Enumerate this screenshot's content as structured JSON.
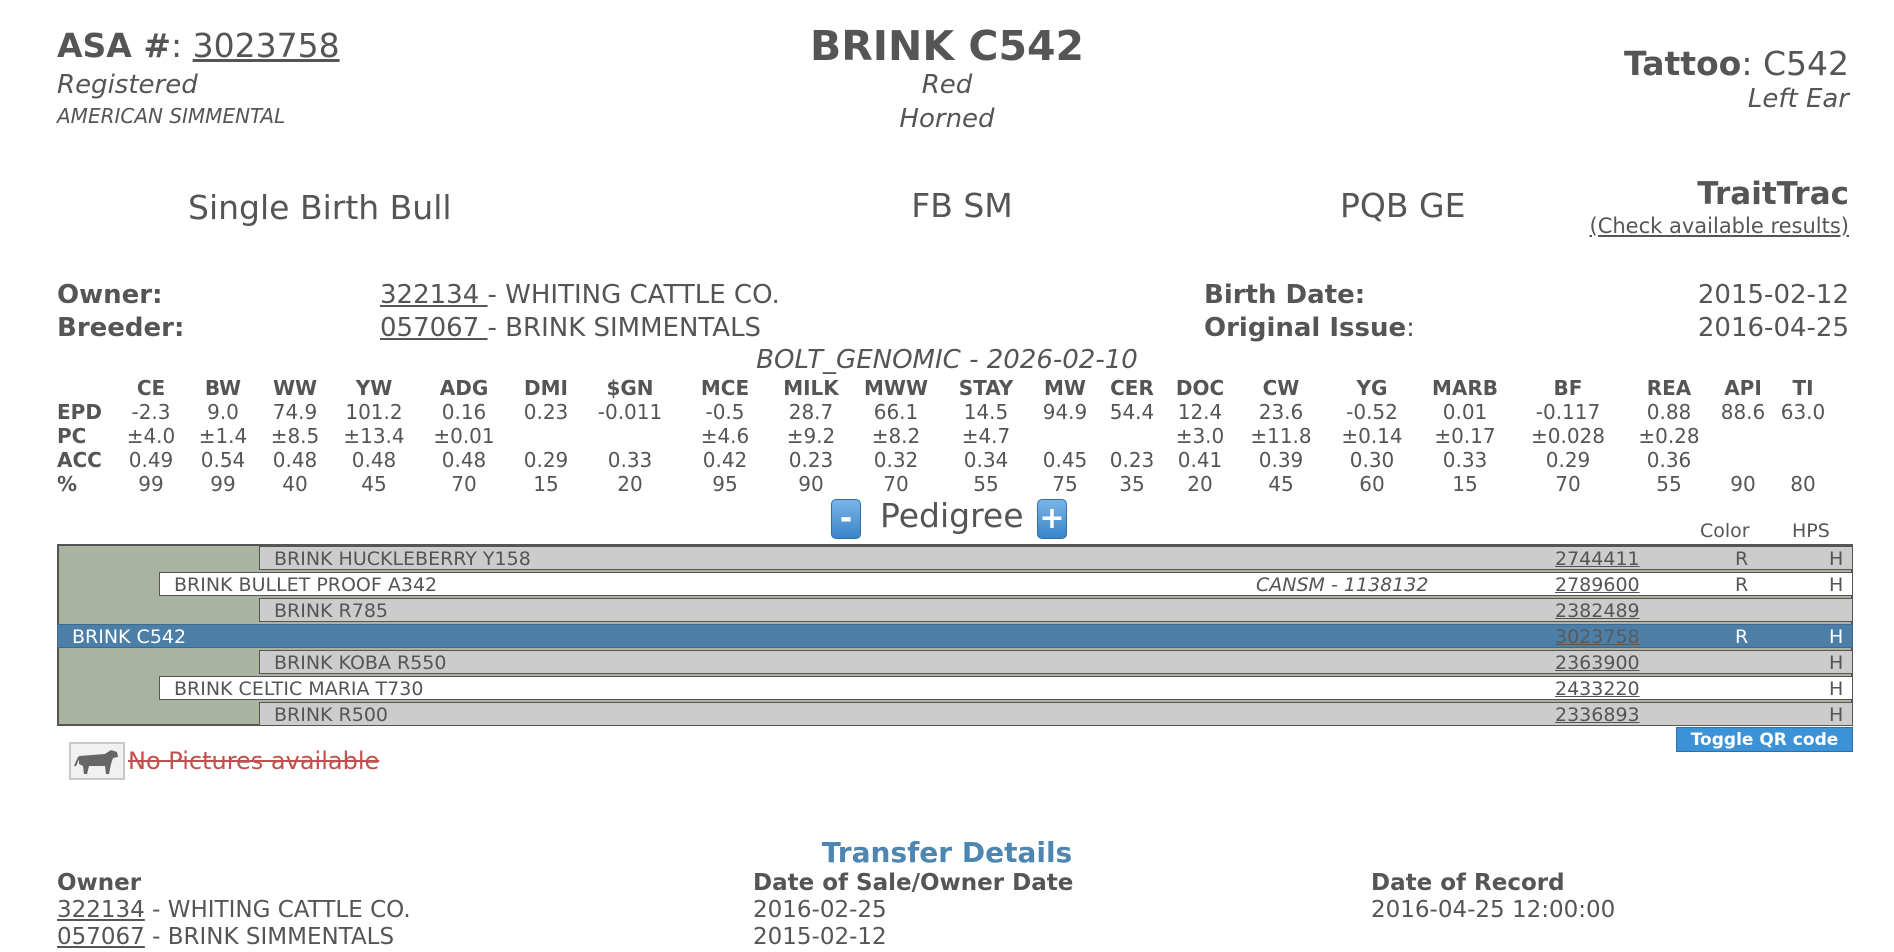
{
  "header": {
    "asa_label": "ASA #",
    "asa_number": "3023758",
    "status": "Registered",
    "breed_assoc": "AMERICAN SIMMENTAL",
    "name": "BRINK C542",
    "color": "Red",
    "horn": "Horned",
    "tattoo_label": "Tattoo",
    "tattoo_value": "C542",
    "tattoo_location": "Left Ear"
  },
  "summary": {
    "birth_type": "Single Birth Bull",
    "breed_code": "FB SM",
    "pqb": "PQB GE",
    "traittrac_title": "TraitTrac",
    "traittrac_link": "(Check available results)"
  },
  "info": {
    "owner_label": "Owner:",
    "owner_id": "322134 ",
    "owner_name": "- WHITING CATTLE CO.",
    "breeder_label": "Breeder:",
    "breeder_id": "057067 ",
    "breeder_name": "- BRINK SIMMENTALS",
    "birth_label": "Birth Date:",
    "birth_value": "2015-02-12",
    "issue_label": "Original Issue",
    "issue_value": "2016-04-25"
  },
  "epd": {
    "source": "BOLT_GENOMIC - 2026-02-10",
    "traits": [
      "CE",
      "BW",
      "WW",
      "YW",
      "ADG",
      "DMI",
      "$GN",
      "MCE",
      "MILK",
      "MWW",
      "STAY",
      "MW",
      "CER",
      "DOC",
      "CW",
      "YG",
      "MARB",
      "BF",
      "REA",
      "API",
      "TI"
    ],
    "rows": [
      {
        "label": "EPD",
        "values": [
          "-2.3",
          "9.0",
          "74.9",
          "101.2",
          "0.16",
          "0.23",
          "-0.011",
          "-0.5",
          "28.7",
          "66.1",
          "14.5",
          "94.9",
          "54.4",
          "12.4",
          "23.6",
          "-0.52",
          "0.01",
          "-0.117",
          "0.88",
          "88.6",
          "63.0"
        ]
      },
      {
        "label": "PC",
        "values": [
          "±4.0",
          "±1.4",
          "±8.5",
          "±13.4",
          "±0.01",
          "",
          "",
          "±4.6",
          "±9.2",
          "±8.2",
          "±4.7",
          "",
          "",
          "±3.0",
          "±11.8",
          "±0.14",
          "±0.17",
          "±0.028",
          "±0.28",
          "",
          ""
        ]
      },
      {
        "label": "ACC",
        "values": [
          "0.49",
          "0.54",
          "0.48",
          "0.48",
          "0.48",
          "0.29",
          "0.33",
          "0.42",
          "0.23",
          "0.32",
          "0.34",
          "0.45",
          "0.23",
          "0.41",
          "0.39",
          "0.30",
          "0.33",
          "0.29",
          "0.36",
          "",
          ""
        ]
      },
      {
        "label": "%",
        "values": [
          "99",
          "99",
          "40",
          "45",
          "70",
          "15",
          "20",
          "95",
          "90",
          "70",
          "55",
          "75",
          "35",
          "20",
          "45",
          "60",
          "15",
          "70",
          "55",
          "90",
          "80"
        ]
      }
    ]
  },
  "pedigree": {
    "title": "Pedigree",
    "minus": "-",
    "plus": "+",
    "col_color": "Color",
    "col_hps": "HPS",
    "rows": [
      {
        "name": "BRINK HUCKLEBERRY Y158",
        "reg": "2744411",
        "color": "R",
        "hps": "H",
        "note": ""
      },
      {
        "name": "BRINK BULLET PROOF A342",
        "reg": "2789600",
        "color": "R",
        "hps": "H",
        "note": "CANSM - 1138132"
      },
      {
        "name": "BRINK R785",
        "reg": "2382489",
        "color": "",
        "hps": "",
        "note": ""
      },
      {
        "name": "BRINK C542",
        "reg": "3023758",
        "color": "R",
        "hps": "H",
        "note": ""
      },
      {
        "name": "BRINK KOBA R550",
        "reg": "2363900",
        "color": "",
        "hps": "H",
        "note": ""
      },
      {
        "name": "BRINK CELTIC MARIA T730",
        "reg": "2433220",
        "color": "",
        "hps": "H",
        "note": ""
      },
      {
        "name": "BRINK R500",
        "reg": "2336893",
        "color": "",
        "hps": "H",
        "note": ""
      }
    ],
    "qr_toggle": "Toggle QR code"
  },
  "pictures": {
    "no_pictures": "No Pictures available",
    "icon": "cow-icon"
  },
  "transfer": {
    "title": "Transfer Details",
    "headers": [
      "Owner",
      "Date of Sale/Owner Date",
      "Date of Record"
    ],
    "rows": [
      {
        "owner_id": "322134",
        "owner_name": " - WHITING CATTLE CO.",
        "sale_date": "2016-02-25",
        "record_date": "2016-04-25 12:00:00"
      },
      {
        "owner_id": "057067",
        "owner_name": " - BRINK SIMMENTALS",
        "sale_date": "2015-02-12",
        "record_date": ""
      }
    ]
  }
}
